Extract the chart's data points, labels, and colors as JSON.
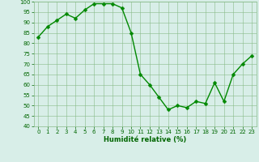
{
  "x": [
    0,
    1,
    2,
    3,
    4,
    5,
    6,
    7,
    8,
    9,
    10,
    11,
    12,
    13,
    14,
    15,
    16,
    17,
    18,
    19,
    20,
    21,
    22,
    23
  ],
  "y": [
    83,
    88,
    91,
    94,
    92,
    96,
    99,
    99,
    99,
    97,
    85,
    65,
    60,
    54,
    48,
    50,
    49,
    52,
    51,
    61,
    52,
    65,
    70,
    74
  ],
  "line_color": "#008800",
  "marker_color": "#008800",
  "bg_color": "#d8eee8",
  "grid_color": "#88bb88",
  "xlabel": "Humidité relative (%)",
  "xlabel_color": "#006600",
  "tick_color": "#006600",
  "ylim": [
    40,
    100
  ],
  "xlim": [
    -0.5,
    23.5
  ],
  "yticks": [
    40,
    45,
    50,
    55,
    60,
    65,
    70,
    75,
    80,
    85,
    90,
    95,
    100
  ],
  "xticks": [
    0,
    1,
    2,
    3,
    4,
    5,
    6,
    7,
    8,
    9,
    10,
    11,
    12,
    13,
    14,
    15,
    16,
    17,
    18,
    19,
    20,
    21,
    22,
    23
  ],
  "marker_size": 2.5,
  "line_width": 1.0,
  "tick_fontsize": 5.0,
  "xlabel_fontsize": 6.0
}
